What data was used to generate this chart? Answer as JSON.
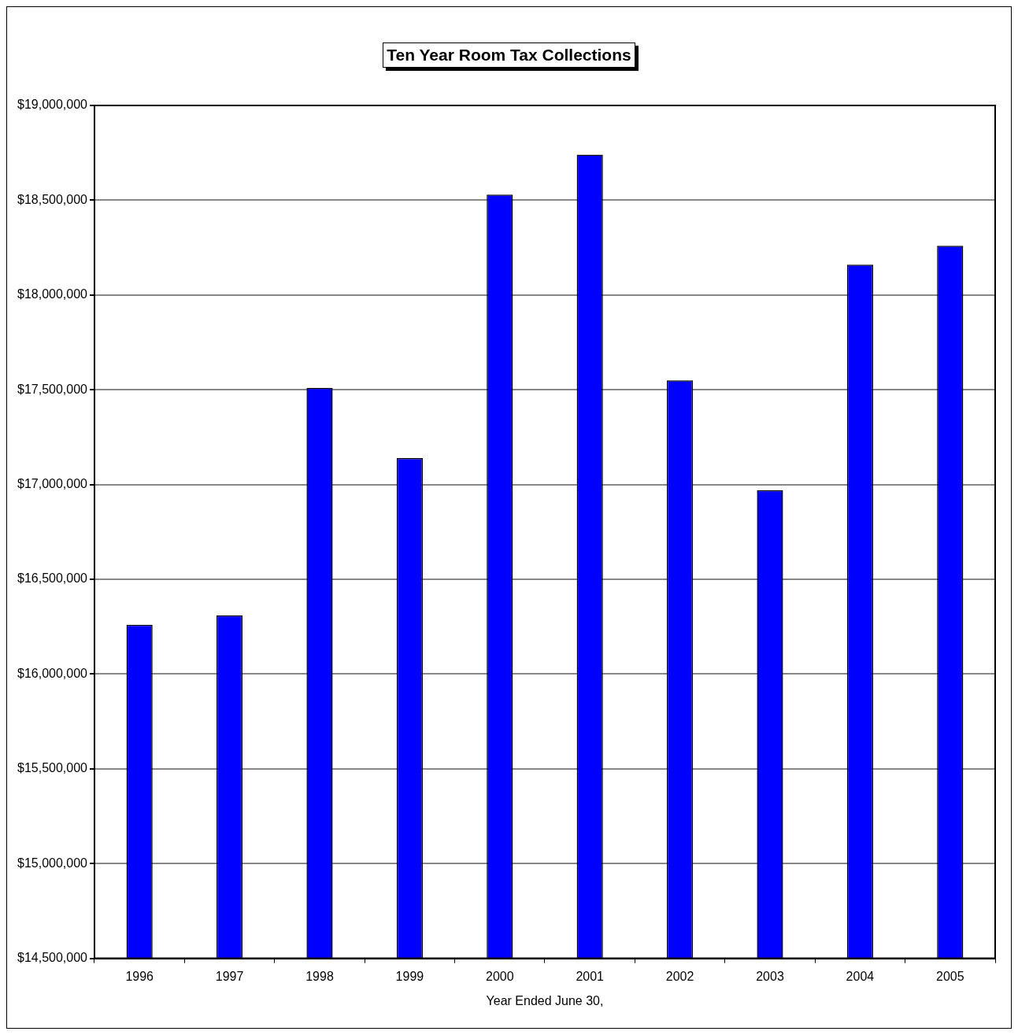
{
  "chart_data": {
    "type": "bar",
    "title": "Ten Year Room Tax Collections",
    "xlabel": "Year Ended June 30,",
    "categories": [
      "1996",
      "1997",
      "1998",
      "1999",
      "2000",
      "2001",
      "2002",
      "2003",
      "2004",
      "2005"
    ],
    "values": [
      16260000,
      16310000,
      17510000,
      17140000,
      18530000,
      18740000,
      17550000,
      16970000,
      18160000,
      18260000
    ],
    "color": "#0000ff",
    "ylim": [
      14500000,
      19000000
    ],
    "yticks": [
      {
        "value": 14500000,
        "label": "$14,500,000"
      },
      {
        "value": 15000000,
        "label": "$15,000,000"
      },
      {
        "value": 15500000,
        "label": "$15,500,000"
      },
      {
        "value": 16000000,
        "label": "$16,000,000"
      },
      {
        "value": 16500000,
        "label": "$16,500,000"
      },
      {
        "value": 17000000,
        "label": "$17,000,000"
      },
      {
        "value": 17500000,
        "label": "$17,500,000"
      },
      {
        "value": 18000000,
        "label": "$18,000,000"
      },
      {
        "value": 18500000,
        "label": "$18,500,000"
      },
      {
        "value": 19000000,
        "label": "$19,000,000"
      }
    ],
    "grid": "y",
    "legend": false
  }
}
